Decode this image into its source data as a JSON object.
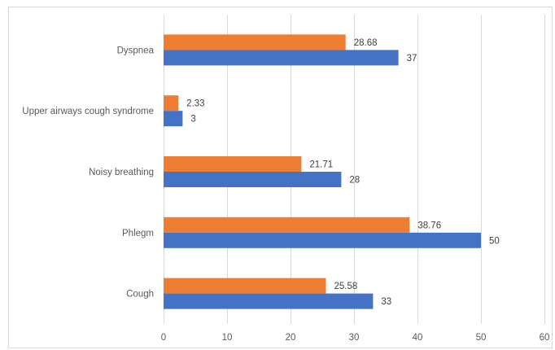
{
  "chart_data": {
    "type": "bar",
    "orientation": "horizontal",
    "title": "",
    "xlabel": "",
    "ylabel": "",
    "categories": [
      "Cough",
      "Phlegm",
      "Noisy breathing",
      "Upper airways cough syndrome",
      "Dyspnea"
    ],
    "series": [
      {
        "values": [
          33,
          50,
          28,
          3,
          37
        ],
        "color": "#4472C4"
      },
      {
        "values": [
          25.58,
          38.76,
          21.71,
          2.33,
          28.68
        ],
        "color": "#ED7D31"
      }
    ],
    "xlim": [
      0,
      60
    ],
    "xticks": [
      0,
      10,
      20,
      30,
      40,
      50,
      60
    ],
    "grid": true,
    "legend": "none",
    "data_labels": true
  }
}
